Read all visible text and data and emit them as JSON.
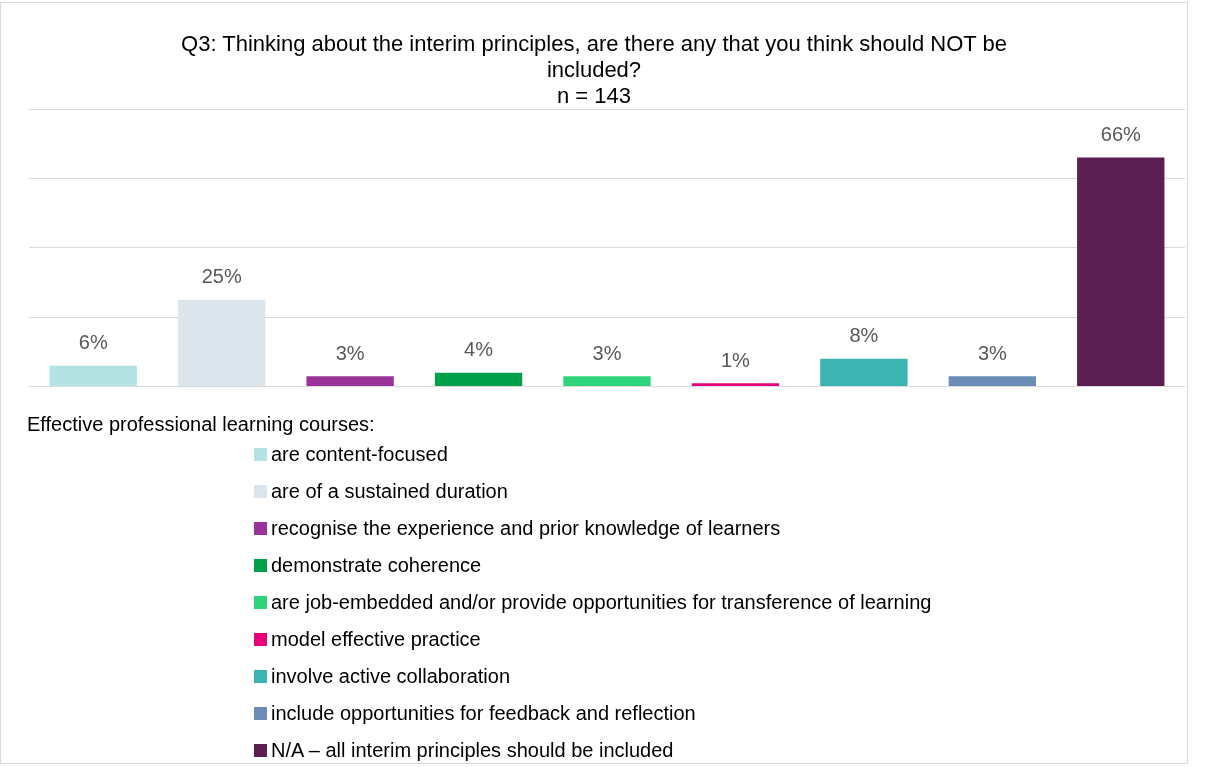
{
  "chart_data": {
    "type": "bar",
    "title": "Q3: Thinking about the interim principles, are there any that you think should NOT be included?",
    "subtitle": "n = 143",
    "legend_title": "Effective professional learning courses:",
    "categories": [
      null,
      null,
      null,
      null,
      null,
      null,
      null,
      null,
      null
    ],
    "ylim": [
      0,
      80
    ],
    "grid": "y",
    "legend": "bottom",
    "stacked": true,
    "series": [
      {
        "name": "are content-focused",
        "color": "#b3e3e3",
        "values": [
          6,
          null,
          null,
          null,
          null,
          null,
          null,
          null,
          null
        ],
        "value_labels": [
          "6%",
          null,
          null,
          null,
          null,
          null,
          null,
          null,
          null
        ]
      },
      {
        "name": "are of a sustained duration",
        "color": "#dce4ec",
        "values": [
          null,
          25,
          null,
          null,
          null,
          null,
          null,
          null,
          null
        ],
        "value_labels": [
          null,
          "25%",
          null,
          null,
          null,
          null,
          null,
          null,
          null
        ]
      },
      {
        "name": "recognise the experience and prior knowledge of learners",
        "color": "#993399",
        "values": [
          null,
          null,
          3,
          null,
          null,
          null,
          null,
          null,
          null
        ],
        "value_labels": [
          null,
          null,
          "3%",
          null,
          null,
          null,
          null,
          null,
          null
        ]
      },
      {
        "name": "demonstrate coherence",
        "color": "#00a04a",
        "values": [
          null,
          null,
          null,
          4,
          null,
          null,
          null,
          null,
          null
        ],
        "value_labels": [
          null,
          null,
          null,
          "4%",
          null,
          null,
          null,
          null,
          null
        ]
      },
      {
        "name": "are job-embedded and/or provide opportunities for transference of learning",
        "color": "#2ed47a",
        "values": [
          null,
          null,
          null,
          null,
          3,
          null,
          null,
          null,
          null
        ],
        "value_labels": [
          null,
          null,
          null,
          null,
          "3%",
          null,
          null,
          null,
          null
        ]
      },
      {
        "name": "model effective practice",
        "color": "#e6007e",
        "values": [
          null,
          null,
          null,
          null,
          null,
          1,
          null,
          null,
          null
        ],
        "value_labels": [
          null,
          null,
          null,
          null,
          null,
          "1%",
          null,
          null,
          null
        ]
      },
      {
        "name": "involve active collaboration",
        "color": "#3cb4b4",
        "values": [
          null,
          null,
          null,
          null,
          null,
          null,
          8,
          null,
          null
        ],
        "value_labels": [
          null,
          null,
          null,
          null,
          null,
          null,
          "8%",
          null,
          null
        ]
      },
      {
        "name": "include opportunities for feedback and reflection",
        "color": "#6a8db5",
        "values": [
          null,
          null,
          null,
          null,
          null,
          null,
          null,
          3,
          null
        ],
        "value_labels": [
          null,
          null,
          null,
          null,
          null,
          null,
          null,
          "3%",
          null
        ]
      },
      {
        "name": "N/A – all interim principles should be included",
        "color": "#5a1e50",
        "values": [
          null,
          null,
          null,
          null,
          null,
          null,
          null,
          null,
          66
        ],
        "value_labels": [
          null,
          null,
          null,
          null,
          null,
          null,
          null,
          null,
          "66%"
        ]
      }
    ]
  }
}
